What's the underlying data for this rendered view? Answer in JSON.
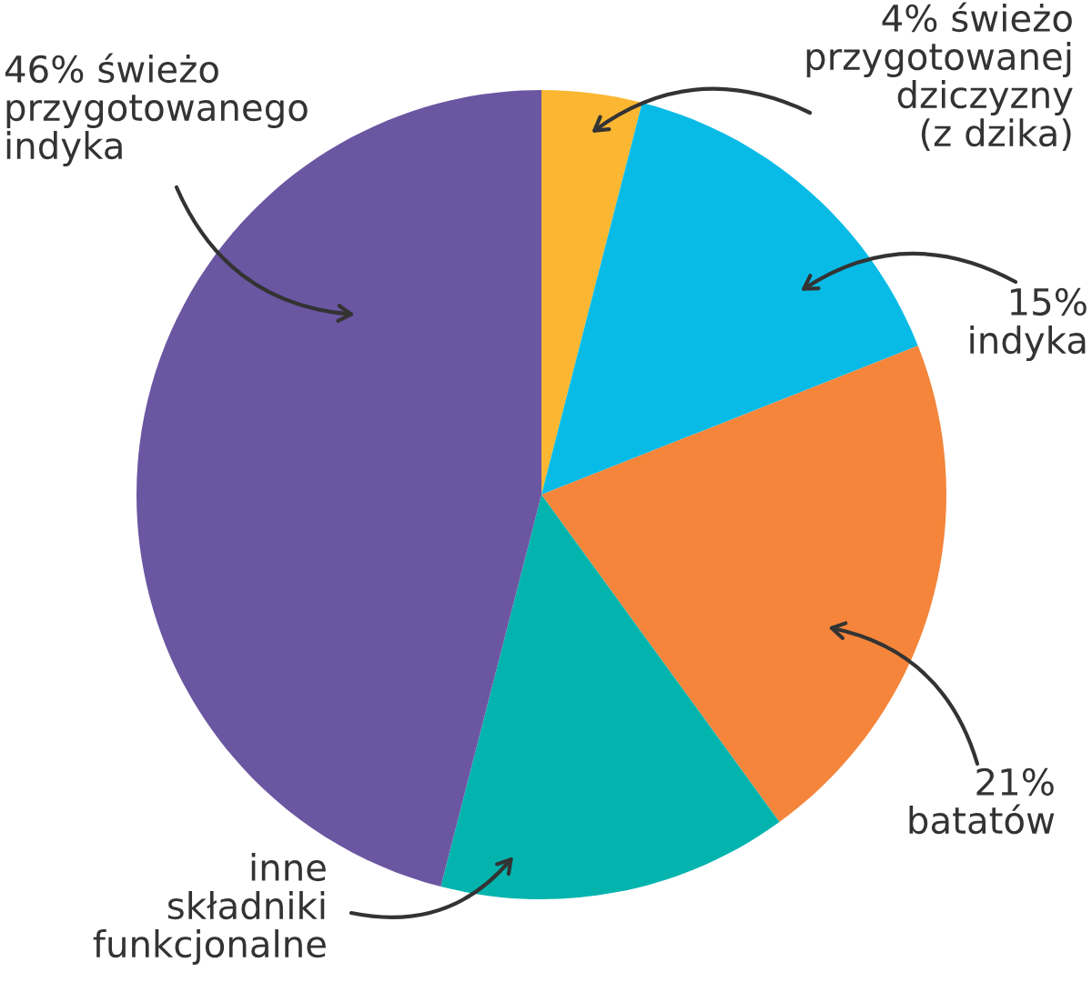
{
  "chart_data": {
    "type": "pie",
    "categories": [
      "świeżo\nprzygotowanej\ndziczyzny\n(z dzika)",
      "indyka",
      "batatów",
      "inne\nskładniki\nfunkcjonalne",
      "świeżo\nprzygotowanego\nindyka"
    ],
    "values": [
      4,
      15,
      21,
      14,
      46
    ],
    "value_labels": [
      "4%",
      "15%",
      "21%",
      null,
      "46%"
    ],
    "colors": [
      "#fbb731",
      "#08bbe6",
      "#f4853b",
      "#03b4ae",
      "#6b56a2"
    ]
  }
}
